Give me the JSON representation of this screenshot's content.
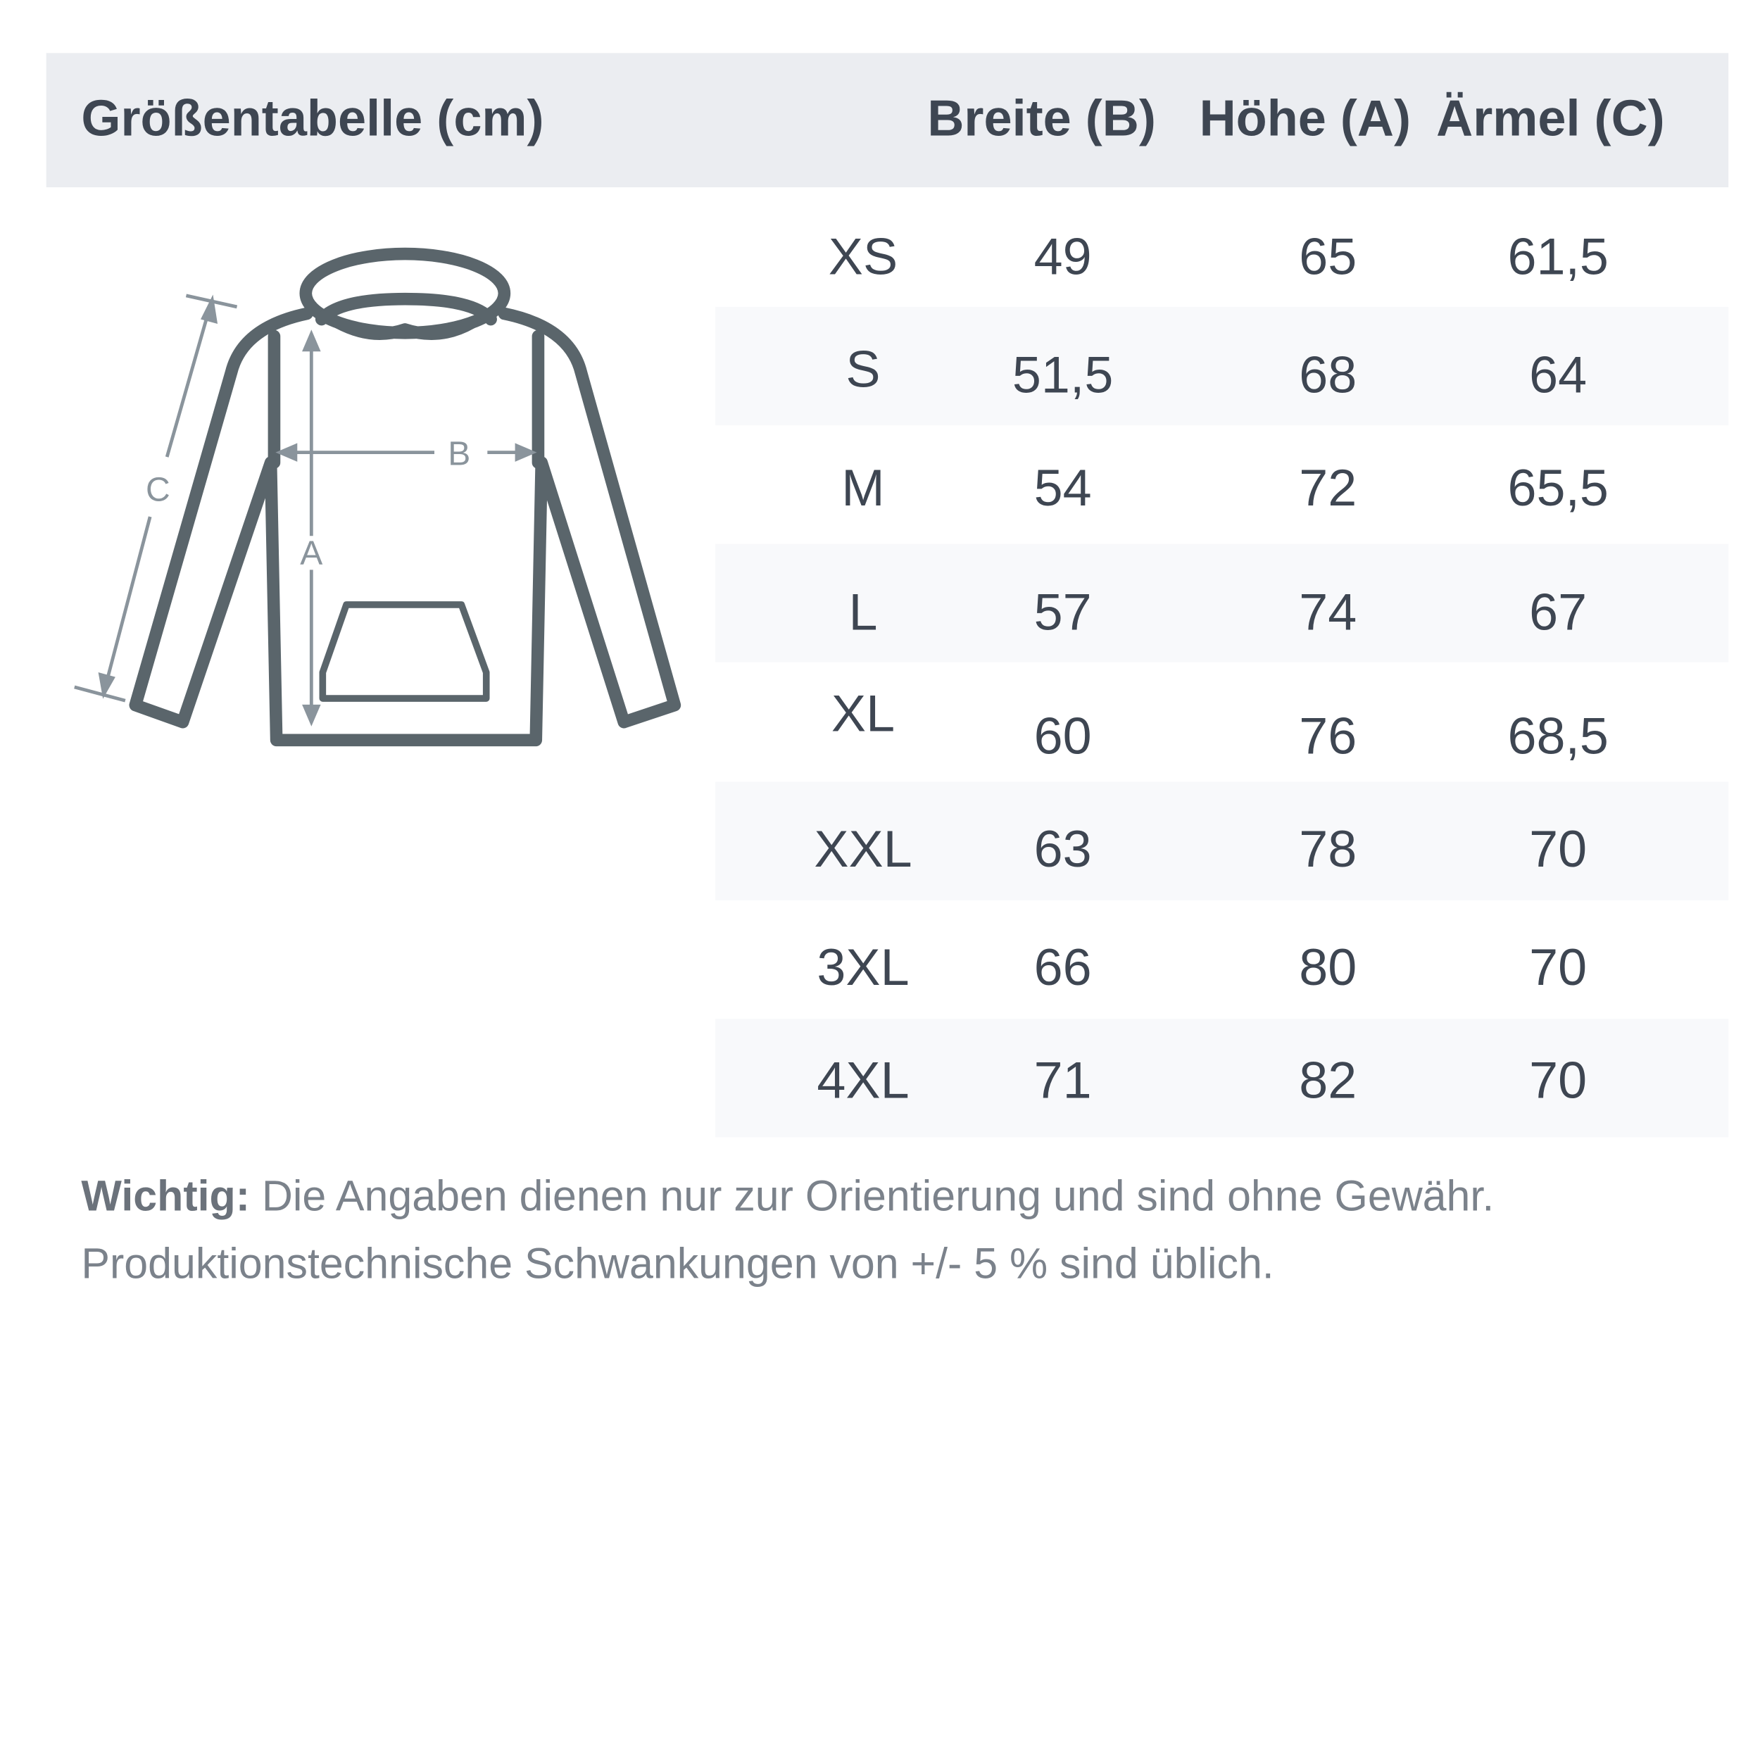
{
  "header": {
    "title": "Größentabelle (cm)",
    "columns": [
      "Breite (B)",
      "Höhe (A)",
      "Ärmel (C)"
    ]
  },
  "diagram": {
    "labels": {
      "width": "B",
      "height": "A",
      "sleeve": "C"
    }
  },
  "rows": [
    {
      "size": "XS",
      "b": "49",
      "a": "65",
      "c": "61,5"
    },
    {
      "size": "S",
      "b": "51,5",
      "a": "68",
      "c": "64"
    },
    {
      "size": "M",
      "b": "54",
      "a": "72",
      "c": "65,5"
    },
    {
      "size": "L",
      "b": "57",
      "a": "74",
      "c": "67"
    },
    {
      "size": "XL",
      "b": "60",
      "a": "76",
      "c": "68,5"
    },
    {
      "size": "XXL",
      "b": "63",
      "a": "78",
      "c": "70"
    },
    {
      "size": "3XL",
      "b": "66",
      "a": "80",
      "c": "70"
    },
    {
      "size": "4XL",
      "b": "71",
      "a": "82",
      "c": "70"
    }
  ],
  "note": {
    "label": "Wichtig:",
    "line1": " Die Angaben dienen nur zur Orientierung und sind ohne Gewähr.",
    "line2": "Produktionstechnische Schwankungen von +/- 5 % sind üblich."
  },
  "colors": {
    "header_bg": "#ebedf1",
    "stripe": "#f8f9fb",
    "text": "#3e4652",
    "outline": "#5a656b",
    "measure": "#8a949c"
  }
}
